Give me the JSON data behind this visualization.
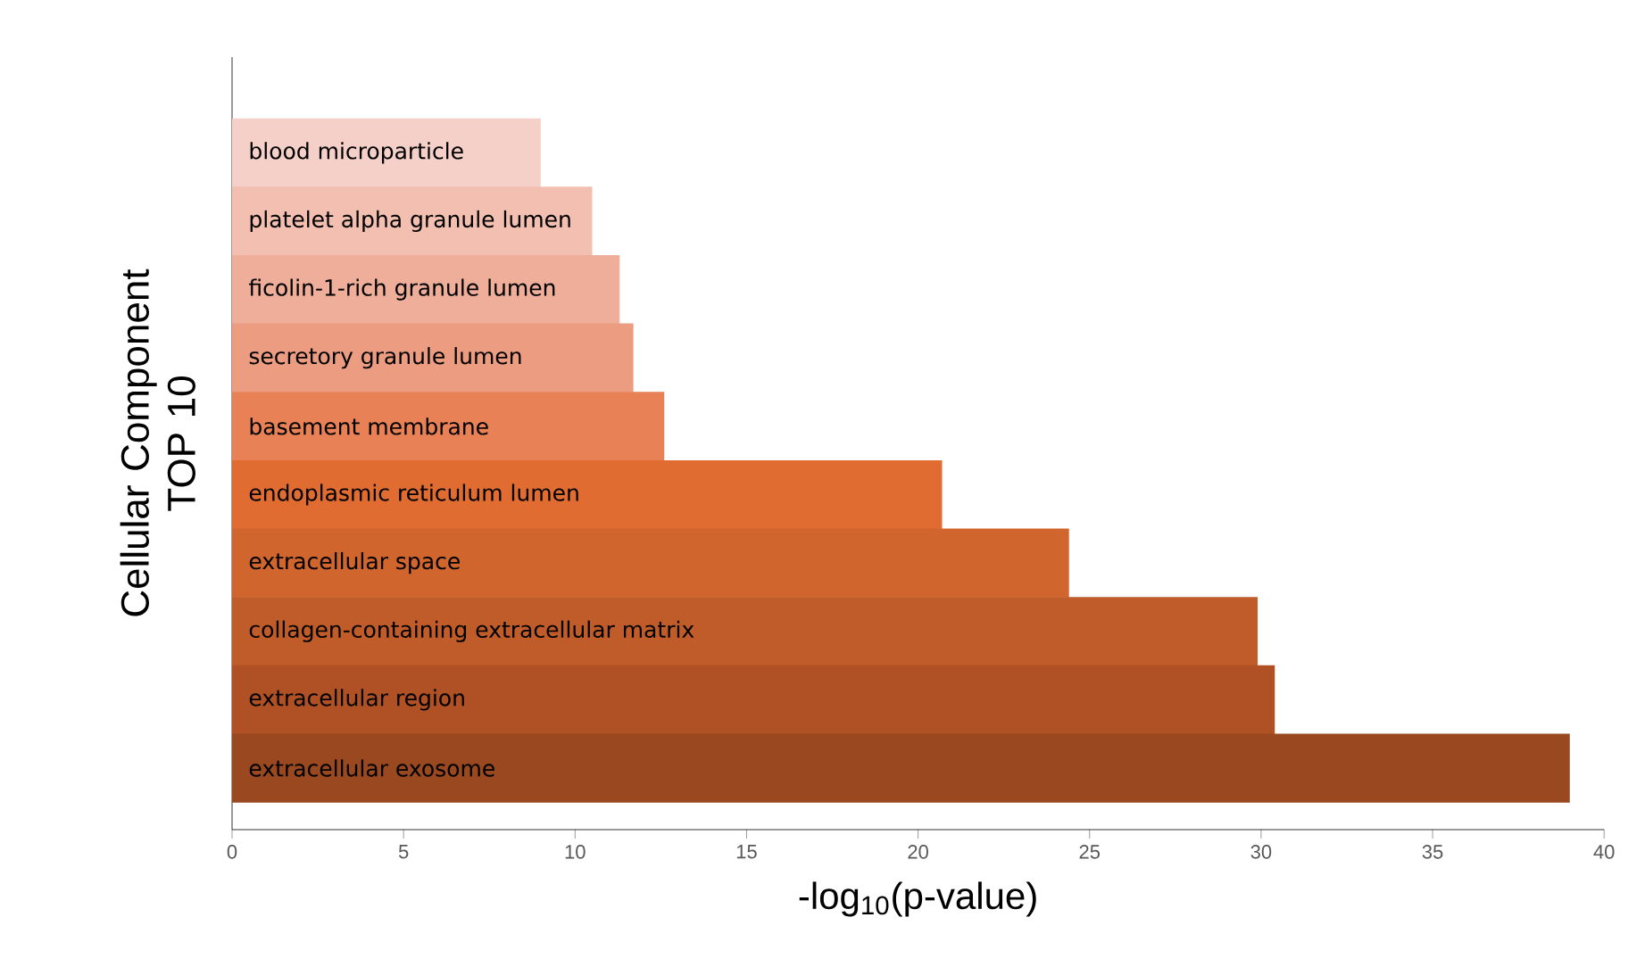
{
  "chart_data": {
    "type": "bar",
    "orientation": "horizontal",
    "categories": [
      "blood microparticle",
      "platelet alpha granule lumen",
      "ficolin-1-rich granule lumen",
      "secretory granule lumen",
      "basement membrane",
      "endoplasmic reticulum lumen",
      "extracellular space",
      "collagen-containing extracellular matrix",
      "extracellular region",
      "extracellular exosome"
    ],
    "values": [
      9.0,
      10.5,
      11.3,
      11.7,
      12.6,
      20.7,
      24.4,
      29.9,
      30.4,
      39.0
    ],
    "colors": [
      "#f5d0c8",
      "#f2bfb0",
      "#efae9a",
      "#ec9c80",
      "#e88156",
      "#e06c32",
      "#d1652e",
      "#c05c29",
      "#b05125",
      "#9a4820"
    ],
    "xlabel": "-log$_{10}$(p-value)",
    "ylabel": "Cellular Component TOP 10",
    "xlim": [
      0,
      40
    ],
    "xticks": [
      0,
      5,
      10,
      15,
      20,
      25,
      30,
      35,
      40
    ],
    "grid": false
  }
}
